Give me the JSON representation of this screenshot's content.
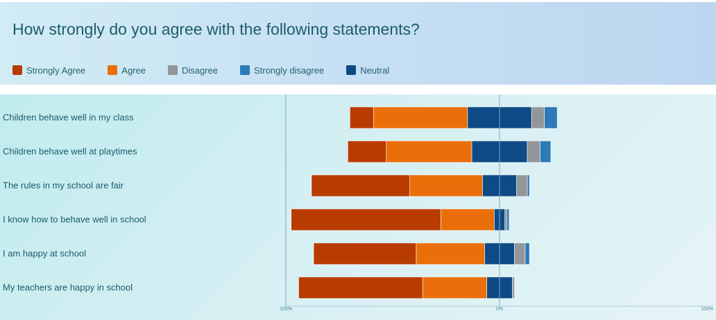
{
  "header": {
    "title": "How strongly do you agree with the following statements?"
  },
  "colors": {
    "strongly_agree": "#b83c00",
    "agree": "#ea6f0a",
    "disagree": "#929699",
    "strongly_disagree": "#2c7ab6",
    "neutral": "#0e4a86",
    "axis_line": "#7fa9bd",
    "divider": "#ffffff"
  },
  "chart_data": {
    "type": "bar",
    "orientation": "horizontal-diverging",
    "title": "How strongly do you agree with the following statements?",
    "categories": [
      "Children behave well in my class",
      "Children behave well at playtimes",
      "The rules in my school are fair",
      "I know how to behave well in school",
      "I am happy at school",
      "My teachers are happy in school"
    ],
    "series": [
      {
        "name": "Strongly Agree",
        "key": "strongly_agree",
        "side": "left",
        "values": [
          11,
          18,
          46,
          70,
          48,
          58
        ]
      },
      {
        "name": "Agree",
        "key": "agree",
        "side": "left",
        "values": [
          44,
          40,
          34,
          25,
          32,
          30
        ]
      },
      {
        "name": "Disagree",
        "key": "disagree",
        "side": "right",
        "values": [
          6,
          6,
          5,
          1,
          5,
          1
        ]
      },
      {
        "name": "Strongly disagree",
        "key": "strongly_disagree",
        "side": "right",
        "values": [
          6,
          5,
          1,
          1,
          2,
          0
        ]
      },
      {
        "name": "Neutral",
        "key": "neutral",
        "side": "split",
        "values": [
          30,
          26,
          16,
          5,
          14,
          12
        ]
      }
    ],
    "xlim": [
      -100,
      100
    ],
    "x_tick_labels": [
      "100%",
      "0%",
      "100%"
    ],
    "grid": false,
    "legend_position": "top-left"
  }
}
